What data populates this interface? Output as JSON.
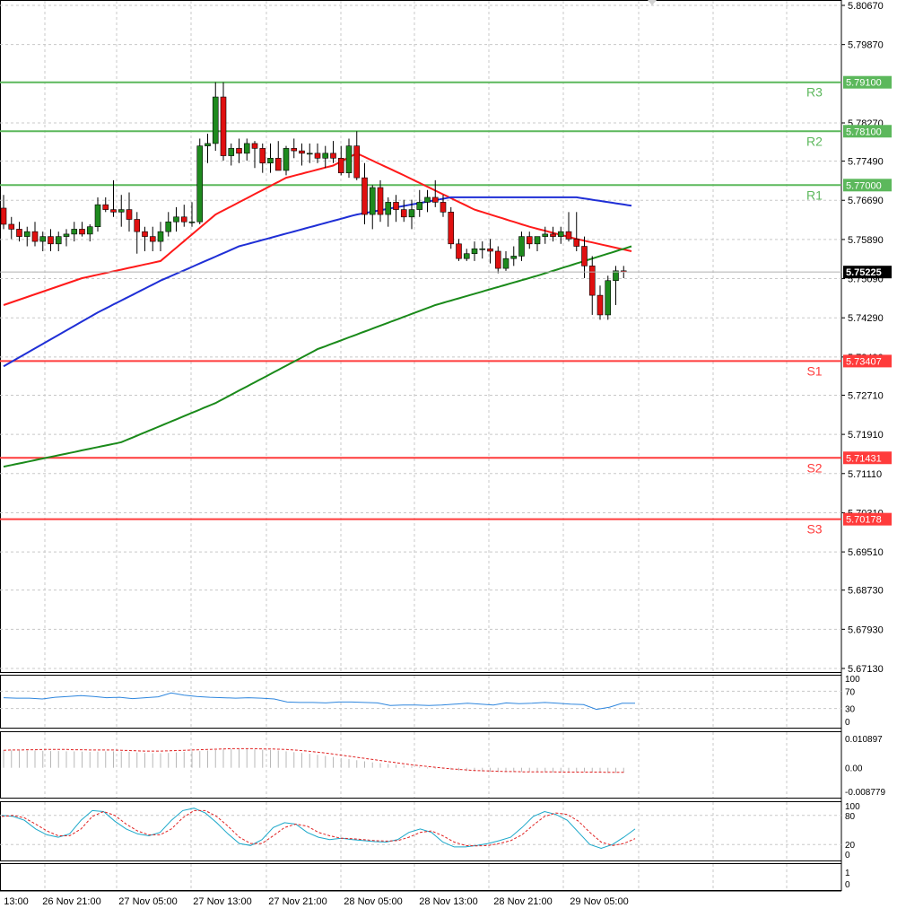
{
  "chart_data": [
    {
      "type": "candlestick",
      "panel": "price",
      "price_axis_ticks": [
        "5.80670",
        "5.79870",
        "5.78270",
        "5.77490",
        "5.76690",
        "5.75890",
        "5.75090",
        "5.74290",
        "5.73490",
        "5.72710",
        "5.71910",
        "5.71110",
        "5.70310",
        "5.69510",
        "5.68730",
        "5.67930",
        "5.67130"
      ],
      "ylim": [
        5.6713,
        5.8067
      ],
      "time_labels": [
        "13:00",
        "26 Nov 21:00",
        "27 Nov 05:00",
        "27 Nov 13:00",
        "27 Nov 21:00",
        "28 Nov 05:00",
        "28 Nov 13:00",
        "28 Nov 21:00",
        "29 Nov 05:00"
      ],
      "current_price": "5.75225",
      "levels": [
        {
          "name": "R3",
          "value": 5.791,
          "label": "5.79100",
          "color": "#5cb85c"
        },
        {
          "name": "R2",
          "value": 5.781,
          "label": "5.78100",
          "color": "#5cb85c"
        },
        {
          "name": "R1",
          "value": 5.77,
          "label": "5.77000",
          "color": "#5cb85c"
        },
        {
          "name": "S1",
          "value": 5.73407,
          "label": "5.73407",
          "color": "#ff3b3b"
        },
        {
          "name": "S2",
          "value": 5.71431,
          "label": "5.71431",
          "color": "#ff3b3b"
        },
        {
          "name": "S3",
          "value": 5.70178,
          "label": "5.70178",
          "color": "#ff3b3b"
        }
      ],
      "candles": [
        [
          5.7653,
          5.768,
          5.761,
          5.762
        ],
        [
          5.762,
          5.7635,
          5.759,
          5.761
        ],
        [
          5.761,
          5.7625,
          5.7585,
          5.7595
        ],
        [
          5.7595,
          5.7615,
          5.7575,
          5.7605
        ],
        [
          5.7605,
          5.7625,
          5.7575,
          5.7585
        ],
        [
          5.7585,
          5.7605,
          5.7565,
          5.7595
        ],
        [
          5.7595,
          5.761,
          5.7565,
          5.758
        ],
        [
          5.758,
          5.7605,
          5.7565,
          5.7595
        ],
        [
          5.7595,
          5.761,
          5.7575,
          5.76
        ],
        [
          5.76,
          5.7625,
          5.7585,
          5.761
        ],
        [
          5.761,
          5.7625,
          5.7595,
          5.76
        ],
        [
          5.76,
          5.762,
          5.7585,
          5.7615
        ],
        [
          5.7615,
          5.7675,
          5.7605,
          5.766
        ],
        [
          5.766,
          5.7675,
          5.7645,
          5.765
        ],
        [
          5.765,
          5.771,
          5.7635,
          5.7645
        ],
        [
          5.7645,
          5.768,
          5.7615,
          5.765
        ],
        [
          5.765,
          5.7685,
          5.7605,
          5.763
        ],
        [
          5.763,
          5.7645,
          5.756,
          5.7605
        ],
        [
          5.7605,
          5.7615,
          5.7565,
          5.7595
        ],
        [
          5.7595,
          5.7615,
          5.7565,
          5.7585
        ],
        [
          5.7585,
          5.7625,
          5.7565,
          5.7605
        ],
        [
          5.7605,
          5.7645,
          5.7595,
          5.7625
        ],
        [
          5.7625,
          5.7655,
          5.7605,
          5.7635
        ],
        [
          5.7635,
          5.766,
          5.7615,
          5.7625
        ],
        [
          5.7625,
          5.7665,
          5.7615,
          5.7625
        ],
        [
          5.7625,
          5.7795,
          5.762,
          5.778
        ],
        [
          5.778,
          5.7805,
          5.7745,
          5.7785
        ],
        [
          5.7785,
          5.791,
          5.777,
          5.788
        ],
        [
          5.788,
          5.791,
          5.775,
          5.776
        ],
        [
          5.776,
          5.7785,
          5.774,
          5.7775
        ],
        [
          5.7775,
          5.7795,
          5.7745,
          5.7765
        ],
        [
          5.7765,
          5.7795,
          5.775,
          5.7785
        ],
        [
          5.7785,
          5.779,
          5.7735,
          5.7775
        ],
        [
          5.7775,
          5.7785,
          5.7725,
          5.7745
        ],
        [
          5.7745,
          5.7785,
          5.7725,
          5.7755
        ],
        [
          5.7755,
          5.779,
          5.7735,
          5.773
        ],
        [
          5.773,
          5.778,
          5.772,
          5.7775
        ],
        [
          5.7775,
          5.7795,
          5.7755,
          5.777
        ],
        [
          5.777,
          5.7785,
          5.774,
          5.7765
        ],
        [
          5.7765,
          5.7785,
          5.7745,
          5.7765
        ],
        [
          5.7765,
          5.7785,
          5.7745,
          5.7755
        ],
        [
          5.7755,
          5.778,
          5.7735,
          5.7765
        ],
        [
          5.7765,
          5.779,
          5.7745,
          5.7755
        ],
        [
          5.7755,
          5.778,
          5.772,
          5.7725
        ],
        [
          5.7725,
          5.7795,
          5.7715,
          5.778
        ],
        [
          5.778,
          5.781,
          5.771,
          5.7715
        ],
        [
          5.7715,
          5.7745,
          5.762,
          5.764
        ],
        [
          5.764,
          5.77,
          5.761,
          5.7695
        ],
        [
          5.7695,
          5.771,
          5.7625,
          5.764
        ],
        [
          5.764,
          5.7675,
          5.7615,
          5.7665
        ],
        [
          5.7665,
          5.768,
          5.7625,
          5.765
        ],
        [
          5.765,
          5.767,
          5.7625,
          5.7635
        ],
        [
          5.7635,
          5.767,
          5.761,
          5.765
        ],
        [
          5.765,
          5.769,
          5.7635,
          5.7665
        ],
        [
          5.7665,
          5.769,
          5.7645,
          5.7675
        ],
        [
          5.7675,
          5.771,
          5.7655,
          5.7665
        ],
        [
          5.7665,
          5.768,
          5.7635,
          5.7645
        ],
        [
          5.7645,
          5.7655,
          5.757,
          5.758
        ],
        [
          5.758,
          5.759,
          5.7545,
          5.755
        ],
        [
          5.755,
          5.757,
          5.7545,
          5.756
        ],
        [
          5.756,
          5.7585,
          5.7545,
          5.757
        ],
        [
          5.757,
          5.7585,
          5.755,
          5.757
        ],
        [
          5.757,
          5.759,
          5.754,
          5.7565
        ],
        [
          5.7565,
          5.7575,
          5.752,
          5.753
        ],
        [
          5.753,
          5.7565,
          5.7525,
          5.755
        ],
        [
          5.755,
          5.7575,
          5.7535,
          5.7555
        ],
        [
          5.7555,
          5.7605,
          5.7545,
          5.7595
        ],
        [
          5.7595,
          5.7605,
          5.757,
          5.758
        ],
        [
          5.758,
          5.759,
          5.7565,
          5.7595
        ],
        [
          5.7595,
          5.7615,
          5.758,
          5.76
        ],
        [
          5.76,
          5.7615,
          5.7585,
          5.7595
        ],
        [
          5.7595,
          5.7615,
          5.758,
          5.7605
        ],
        [
          5.7605,
          5.7645,
          5.7585,
          5.759
        ],
        [
          5.759,
          5.7645,
          5.7565,
          5.7575
        ],
        [
          5.7575,
          5.7595,
          5.751,
          5.7535
        ],
        [
          5.7535,
          5.7555,
          5.7435,
          5.7475
        ],
        [
          5.7475,
          5.7495,
          5.7425,
          5.7435
        ],
        [
          5.7435,
          5.7515,
          5.7425,
          5.7505
        ],
        [
          5.7505,
          5.7535,
          5.7455,
          5.7525
        ],
        [
          5.7525,
          5.7535,
          5.751,
          5.75225
        ]
      ],
      "moving_averages": [
        {
          "color": "#ff1a1a",
          "points": [
            [
              0,
              5.7455
            ],
            [
              10,
              5.751
            ],
            [
              20,
              5.7545
            ],
            [
              27,
              5.764
            ],
            [
              36,
              5.7715
            ],
            [
              42,
              5.774
            ],
            [
              45,
              5.7765
            ],
            [
              51,
              5.772
            ],
            [
              60,
              5.765
            ],
            [
              67,
              5.7615
            ],
            [
              73,
              5.759
            ],
            [
              80,
              5.7565
            ]
          ]
        },
        {
          "color": "#1f2fd6",
          "points": [
            [
              0,
              5.733
            ],
            [
              12,
              5.744
            ],
            [
              20,
              5.7505
            ],
            [
              30,
              5.7575
            ],
            [
              45,
              5.764
            ],
            [
              57,
              5.7675
            ],
            [
              65,
              5.7675
            ],
            [
              73,
              5.7675
            ],
            [
              80,
              5.7658
            ]
          ]
        },
        {
          "color": "#1a8a1a",
          "points": [
            [
              0,
              5.7125
            ],
            [
              15,
              5.7175
            ],
            [
              27,
              5.7255
            ],
            [
              40,
              5.7365
            ],
            [
              55,
              5.7455
            ],
            [
              68,
              5.7515
            ],
            [
              80,
              5.7575
            ]
          ]
        }
      ]
    },
    {
      "type": "line",
      "panel": "oscillator",
      "tick_labels": [
        "100",
        "70",
        "30",
        "0"
      ],
      "ylim": [
        0,
        100
      ],
      "series": [
        {
          "color": "#2e86de",
          "values": [
            55,
            54,
            54,
            52,
            56,
            58,
            60,
            58,
            55,
            56,
            53,
            55,
            57,
            66,
            61,
            58,
            56,
            55,
            54,
            55,
            54,
            52,
            45,
            44,
            44,
            43,
            45,
            45,
            44,
            43,
            37,
            38,
            38,
            37,
            38,
            40,
            42,
            40,
            38,
            43,
            41,
            42,
            44,
            42,
            40,
            39,
            28,
            33,
            42,
            42
          ]
        }
      ]
    },
    {
      "type": "bar",
      "panel": "histogram",
      "tick_labels": [
        "0.010897",
        "0.00",
        "-0.008779"
      ],
      "ylim": [
        -0.008779,
        0.010897
      ],
      "signal_color": "#e02020",
      "values": [
        0.0066,
        0.0065,
        0.0064,
        0.0064,
        0.0064,
        0.0063,
        0.0062,
        0.0062,
        0.0061,
        0.0061,
        0.006,
        0.0059,
        0.006,
        0.0061,
        0.0061,
        0.006,
        0.0059,
        0.0057,
        0.0055,
        0.0054,
        0.0054,
        0.0055,
        0.0057,
        0.0059,
        0.0061,
        0.0062,
        0.0064,
        0.0066,
        0.0068,
        0.0069,
        0.0069,
        0.0069,
        0.0068,
        0.0067,
        0.0066,
        0.0064,
        0.0061,
        0.0058,
        0.0055,
        0.0052,
        0.0048,
        0.0044,
        0.004,
        0.0036,
        0.0032,
        0.0028,
        0.0024,
        0.002,
        0.0017,
        0.0014,
        0.0011,
        0.0008,
        0.0006,
        0.0004,
        0.0001,
        -0.0001,
        -0.0004,
        -0.0007,
        -0.001,
        -0.0012,
        -0.0013,
        -0.0014,
        -0.0015,
        -0.0016,
        -0.0016,
        -0.0016,
        -0.0015,
        -0.0015,
        -0.0016,
        -0.0017,
        -0.0017,
        -0.0017,
        -0.0016,
        -0.0016,
        -0.0016,
        -0.0017,
        -0.0018,
        -0.0019,
        -0.0019,
        -0.0018
      ],
      "signal": [
        0.0065,
        0.0066,
        0.0066,
        0.0067,
        0.0067,
        0.0068,
        0.0068,
        0.0068,
        0.0068,
        0.0067,
        0.0067,
        0.0066,
        0.0066,
        0.0066,
        0.0066,
        0.0065,
        0.0064,
        0.0063,
        0.0062,
        0.0062,
        0.0062,
        0.0063,
        0.0064,
        0.0065,
        0.0066,
        0.0067,
        0.0068,
        0.0069,
        0.007,
        0.0071,
        0.0071,
        0.0071,
        0.0071,
        0.007,
        0.007,
        0.0069,
        0.0068,
        0.0066,
        0.0064,
        0.0061,
        0.0058,
        0.0055,
        0.0051,
        0.0047,
        0.0043,
        0.0039,
        0.0035,
        0.0031,
        0.0027,
        0.0023,
        0.0019,
        0.0015,
        0.0011,
        0.0008,
        0.0005,
        0.0002,
        -0.0001,
        -0.0004,
        -0.0006,
        -0.0008,
        -0.001,
        -0.0011,
        -0.0012,
        -0.0013,
        -0.0014,
        -0.0014,
        -0.0015,
        -0.0015,
        -0.0015,
        -0.0015,
        -0.0015,
        -0.0016,
        -0.0016,
        -0.0016,
        -0.0016,
        -0.0016,
        -0.0016,
        -0.0017,
        -0.0017,
        -0.0017
      ]
    },
    {
      "type": "line",
      "panel": "stochastic",
      "tick_labels": [
        "100",
        "80",
        "20",
        "0"
      ],
      "ylim": [
        0,
        100
      ],
      "series": [
        {
          "color": "#1aa7c9",
          "values": [
            80,
            78,
            70,
            52,
            40,
            35,
            42,
            70,
            90,
            88,
            68,
            52,
            42,
            38,
            45,
            70,
            90,
            95,
            85,
            65,
            42,
            22,
            18,
            30,
            55,
            65,
            62,
            45,
            35,
            30,
            33,
            30,
            28,
            26,
            25,
            30,
            45,
            52,
            45,
            25,
            15,
            15,
            18,
            22,
            28,
            35,
            55,
            78,
            88,
            82,
            70,
            45,
            20,
            12,
            20,
            35,
            52
          ]
        },
        {
          "color": "#e02020",
          "values": [
            78,
            80,
            75,
            62,
            48,
            38,
            38,
            52,
            78,
            88,
            80,
            62,
            48,
            40,
            40,
            52,
            75,
            90,
            90,
            78,
            58,
            35,
            22,
            22,
            38,
            55,
            62,
            58,
            45,
            38,
            33,
            32,
            30,
            28,
            27,
            28,
            35,
            45,
            48,
            38,
            25,
            18,
            17,
            18,
            22,
            28,
            40,
            60,
            78,
            85,
            82,
            68,
            45,
            25,
            18,
            22,
            32
          ]
        }
      ]
    },
    {
      "type": "line",
      "panel": "bottom",
      "tick_labels": [
        "1",
        "0"
      ],
      "ylim": [
        0,
        1
      ],
      "series": []
    }
  ]
}
